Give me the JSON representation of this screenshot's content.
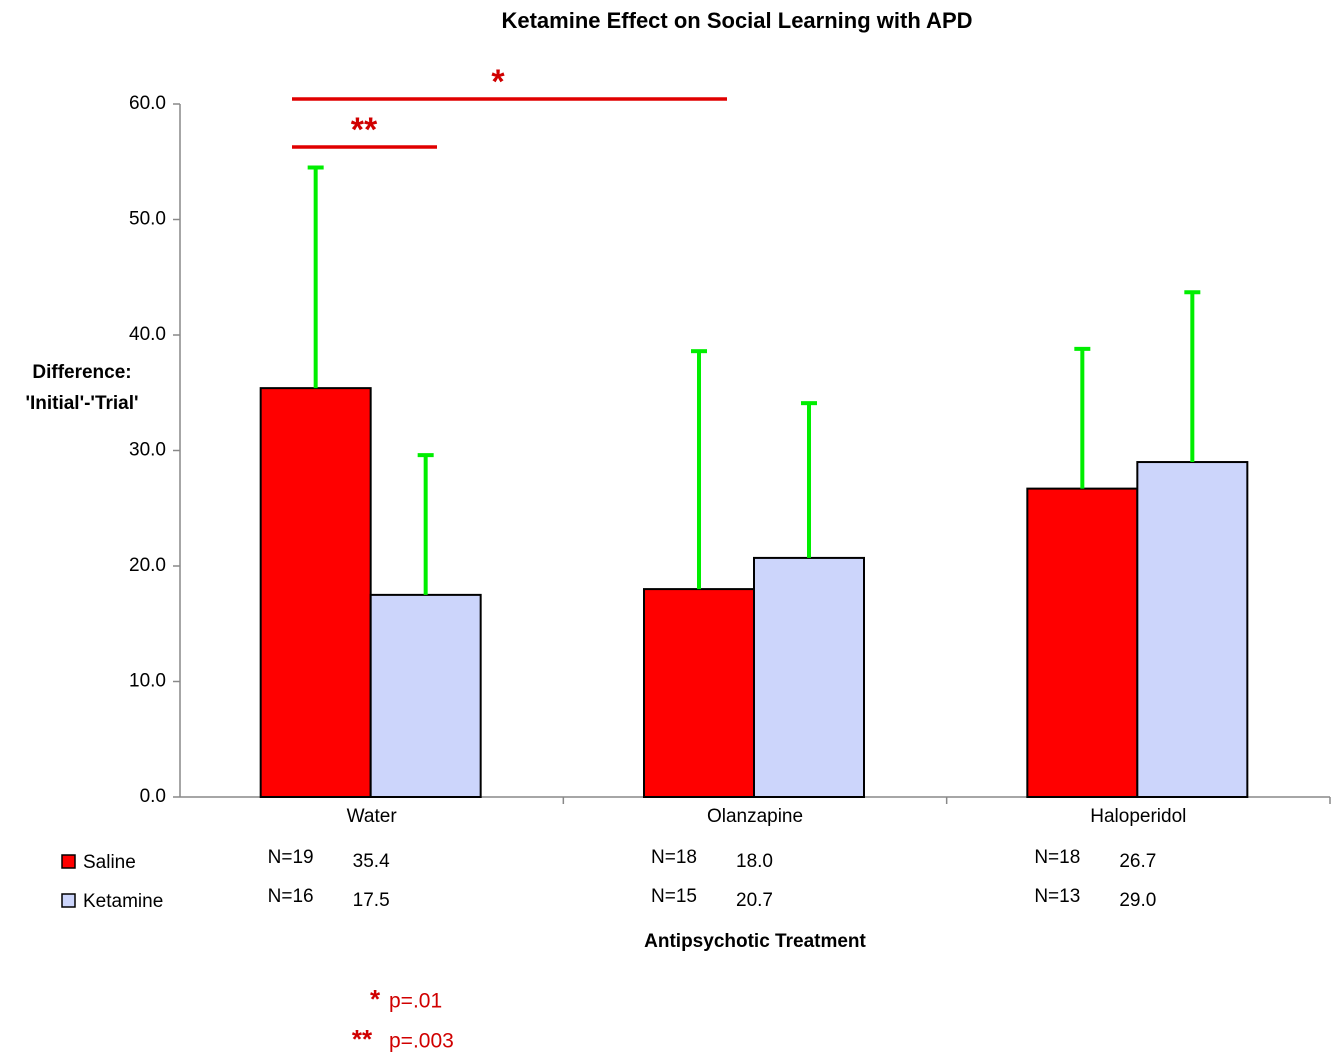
{
  "chart_data": {
    "type": "bar",
    "title": "Ketamine Effect on Social Learning with APD",
    "ylabel": [
      "Difference:",
      "'Initial'-'Trial'"
    ],
    "xlabel": "Antipsychotic Treatment",
    "categories": [
      "Water",
      "Olanzapine",
      "Haloperidol"
    ],
    "series": [
      {
        "name": "Saline",
        "color": "#ff0000",
        "values": [
          35.4,
          18.0,
          26.7
        ],
        "value_labels": [
          "35.4",
          "18.0",
          "26.7"
        ],
        "errors": [
          19.1,
          20.6,
          12.1
        ],
        "n": [
          "N=19",
          "N=18",
          "N=18"
        ]
      },
      {
        "name": "Ketamine",
        "color": "#ccd5fb",
        "values": [
          17.5,
          20.7,
          29.0
        ],
        "value_labels": [
          "17.5",
          "20.7",
          "29.0"
        ],
        "errors": [
          12.1,
          13.4,
          14.7
        ],
        "n": [
          "N=16",
          "N=15",
          "N=13"
        ]
      }
    ],
    "error_color": "#00ee00",
    "ylim": [
      0,
      60
    ],
    "yticks": [
      {
        "value": 0,
        "label": "0.0"
      },
      {
        "value": 10,
        "label": "10.0"
      },
      {
        "value": 20,
        "label": "20.0"
      },
      {
        "value": 30,
        "label": "30.0"
      },
      {
        "value": 40,
        "label": "40.0"
      },
      {
        "value": 50,
        "label": "50.0"
      },
      {
        "value": 60,
        "label": "60.0"
      }
    ],
    "significance": [
      {
        "stars": "*",
        "note": "p=.01"
      },
      {
        "stars": "**",
        "note": "p=.003"
      }
    ]
  }
}
